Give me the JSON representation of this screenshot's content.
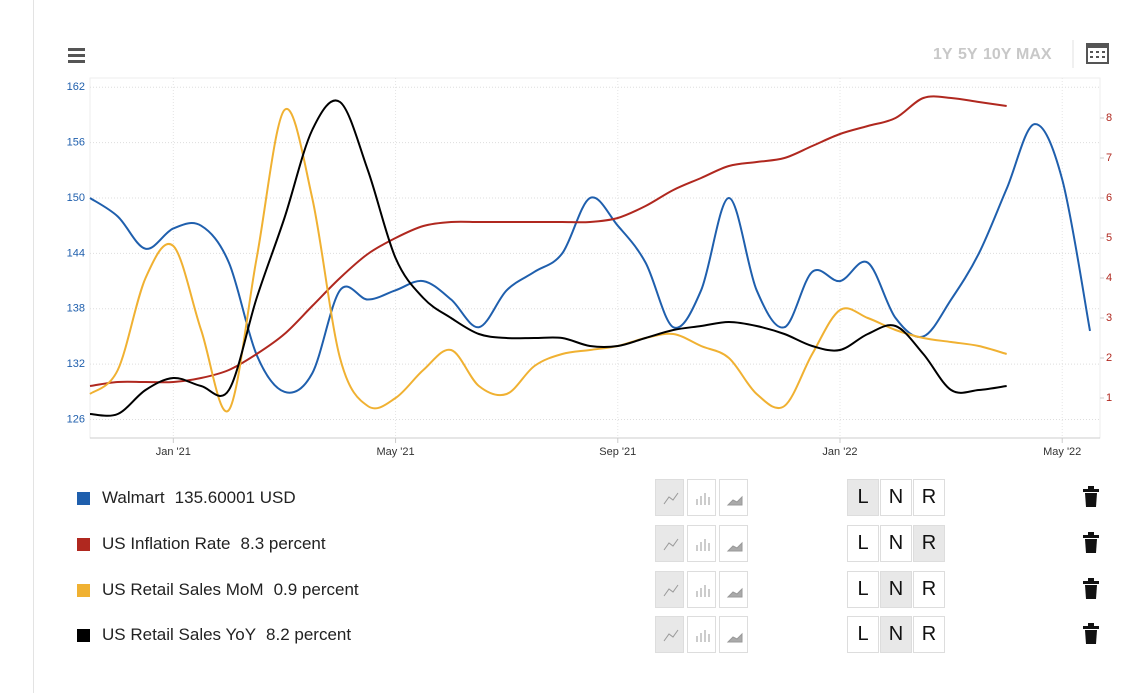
{
  "toolbar": {
    "ranges": [
      "1Y",
      "5Y",
      "10Y",
      "MAX"
    ]
  },
  "scale_buttons": [
    "L",
    "N",
    "R"
  ],
  "legend_values": [
    "135.60001 USD",
    "8.3 percent",
    "0.9 percent",
    "8.2 percent"
  ],
  "chart_data": {
    "type": "line",
    "grid": true,
    "categories": [
      null,
      null,
      null,
      "Jan '21",
      null,
      null,
      null,
      null,
      null,
      null,
      null,
      "May '21",
      null,
      null,
      null,
      null,
      null,
      null,
      null,
      "Sep '21",
      null,
      null,
      null,
      null,
      null,
      null,
      null,
      "Jan '22",
      null,
      null,
      null,
      null,
      null,
      null,
      null,
      "May '22",
      null
    ],
    "ylim": [
      124,
      163
    ],
    "yticks": [
      126,
      132,
      138,
      144,
      150,
      156,
      162
    ],
    "y2lim": [
      0,
      9
    ],
    "y2ticks": [
      1,
      2,
      3,
      4,
      5,
      6,
      7,
      8
    ],
    "series": [
      {
        "name": "Walmart",
        "color": "#1f5fad",
        "scale": "L",
        "values": [
          150,
          148,
          144.5,
          146.7,
          147,
          143,
          133,
          129,
          131,
          140,
          139,
          140,
          141,
          139,
          136,
          140,
          142,
          144,
          150,
          147,
          143,
          136,
          140,
          150,
          140,
          136,
          142,
          141,
          143,
          137,
          135,
          139,
          144,
          151,
          158,
          152,
          135.6
        ]
      },
      {
        "name": "US Inflation Rate",
        "color": "#b0281f",
        "axis": "y2",
        "scale": "R",
        "values": [
          1.3,
          1.4,
          1.4,
          1.4,
          1.5,
          1.7,
          2.1,
          2.6,
          3.3,
          4.0,
          4.6,
          5.0,
          5.3,
          5.4,
          5.4,
          5.4,
          5.4,
          5.4,
          5.4,
          5.5,
          5.8,
          6.2,
          6.5,
          6.8,
          6.9,
          7.0,
          7.3,
          7.6,
          7.8,
          8.0,
          8.5,
          8.5,
          8.4,
          8.3,
          null,
          null,
          null
        ]
      },
      {
        "name": "US Retail Sales MoM",
        "color": "#f0b132",
        "axis": "y2",
        "scale": "N",
        "values": [
          1.1,
          1.7,
          4.0,
          4.8,
          2.7,
          0.7,
          4.5,
          8.2,
          6.0,
          2.0,
          0.8,
          1.0,
          1.7,
          2.2,
          1.3,
          1.1,
          1.8,
          2.1,
          2.2,
          2.3,
          2.5,
          2.6,
          2.3,
          2.0,
          1.1,
          0.8,
          2.1,
          3.2,
          3.0,
          2.7,
          2.5,
          2.4,
          2.3,
          2.1,
          null,
          null,
          null
        ]
      },
      {
        "name": "US Retail Sales YoY",
        "color": "#000000",
        "axis": "y2",
        "scale": "N",
        "values": [
          0.6,
          0.6,
          1.2,
          1.5,
          1.3,
          1.2,
          3.5,
          5.5,
          7.7,
          8.4,
          6.7,
          4.5,
          3.5,
          3.0,
          2.6,
          2.5,
          2.5,
          2.5,
          2.3,
          2.3,
          2.5,
          2.7,
          2.8,
          2.9,
          2.8,
          2.6,
          2.3,
          2.2,
          2.6,
          2.8,
          2.1,
          1.2,
          1.2,
          1.3,
          null,
          null,
          null
        ]
      }
    ]
  }
}
